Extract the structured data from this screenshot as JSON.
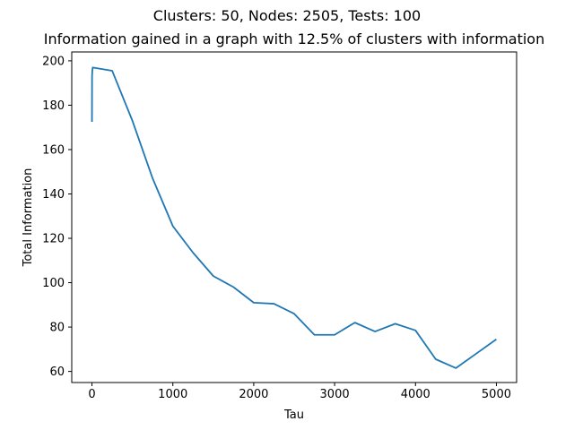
{
  "chart_data": {
    "type": "line",
    "suptitle": "Clusters: 50, Nodes: 2505, Tests: 100",
    "title": "Information gained in a graph with 12.5% of clusters with information",
    "xlabel": "Tau",
    "ylabel": "Total Information",
    "xlim": [
      -250,
      5250
    ],
    "ylim": [
      55,
      204
    ],
    "xticks": [
      0,
      1000,
      2000,
      3000,
      4000,
      5000
    ],
    "yticks": [
      60,
      80,
      100,
      120,
      140,
      160,
      180,
      200
    ],
    "grid": false,
    "legend": "none",
    "series": [
      {
        "color": "#1f77b4",
        "x": [
          0,
          1,
          5,
          10,
          250,
          500,
          750,
          1000,
          1250,
          1500,
          1750,
          2000,
          2250,
          2500,
          2750,
          3000,
          3250,
          3500,
          3750,
          4000,
          4250,
          4500,
          4750,
          5000
        ],
        "y": [
          172.5,
          193,
          196,
          197,
          195.5,
          173,
          147,
          125.5,
          113.5,
          103,
          98,
          91,
          90.5,
          86,
          76.5,
          76.5,
          82,
          78,
          81.5,
          78.5,
          65.5,
          61.5,
          68,
          74.5
        ]
      }
    ]
  }
}
